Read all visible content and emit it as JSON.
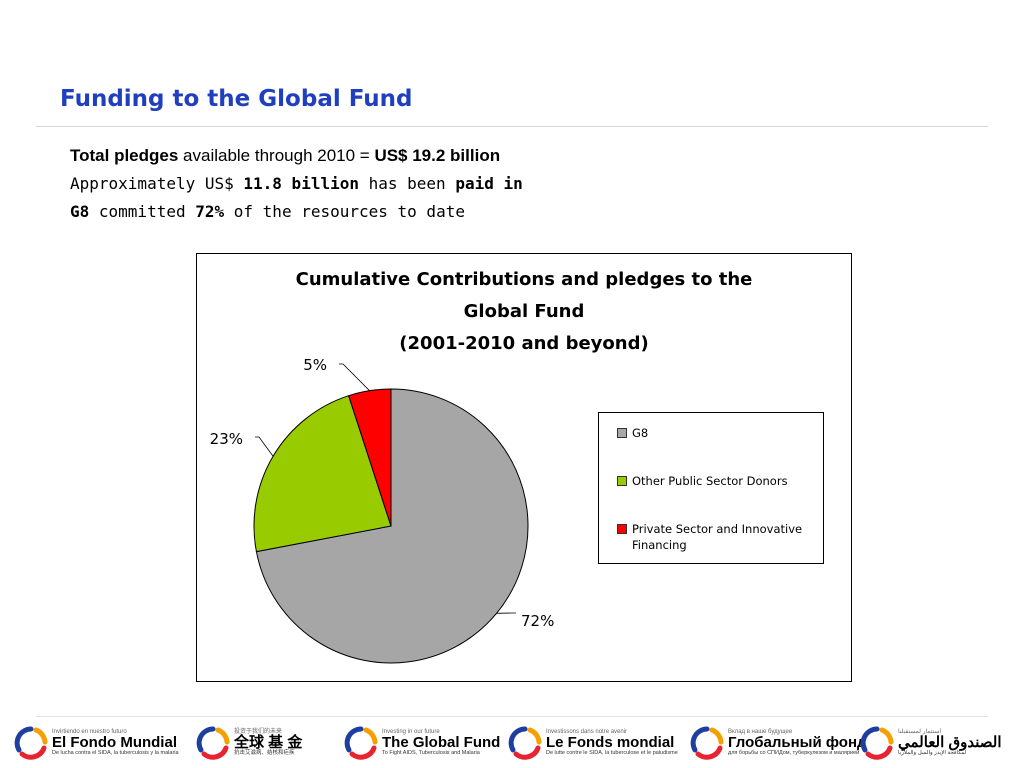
{
  "slide": {
    "title": "Funding to the Global Fund",
    "line1": {
      "a": "Total pledges",
      "b": " available through 2010 = ",
      "c": "US$ 19.2 billion"
    },
    "line2": {
      "a": "Approximately US$ ",
      "b": "11.8 billion",
      "c": " has been ",
      "d": "paid in"
    },
    "line3": {
      "a": "G8",
      "b": " committed ",
      "c": "72%",
      "d": " of the resources to date"
    }
  },
  "chart_data": {
    "type": "pie",
    "title": [
      "Cumulative Contributions and pledges to the",
      "Global Fund",
      "(2001-2010 and beyond)"
    ],
    "legend_position": "right",
    "categories": [
      "G8",
      "Other Public Sector Donors",
      "Private Sector and Innovative Financing"
    ],
    "values": [
      72,
      23,
      5
    ],
    "data_labels": [
      "72%",
      "23%",
      "5%"
    ],
    "colors": [
      "#a6a6a6",
      "#99cc00",
      "#ff0000"
    ]
  },
  "footer": {
    "logos": [
      {
        "tagline": "Invirtiendo en nuestro futuro",
        "name": "El Fondo Mundial",
        "subtitle": "De lucha contra el SIDA, la tuberculosis y la malaria"
      },
      {
        "tagline": "投资于我们的未来",
        "name": "全球 基 金",
        "subtitle": "抗击艾滋病、结核和疟疾"
      },
      {
        "tagline": "Investing in our future",
        "name": "The Global Fund",
        "subtitle": "To Fight AIDS, Tuberculosis and Malaria"
      },
      {
        "tagline": "Investissons dans notre avenir",
        "name": "Le Fonds mondial",
        "subtitle": "De lutte contre le SIDA, la tuberculose et le paludisme"
      },
      {
        "tagline": "Вклад в наше будущее",
        "name": "Глобальный фонд",
        "subtitle": "для борьбы со СПИДом, туберкулезом и малярией"
      },
      {
        "tagline": "استثمار لمستقبلنا",
        "name": "الصندوق العالمي",
        "subtitle": "لمكافحة الإيدز والسل والملاريا"
      }
    ]
  }
}
